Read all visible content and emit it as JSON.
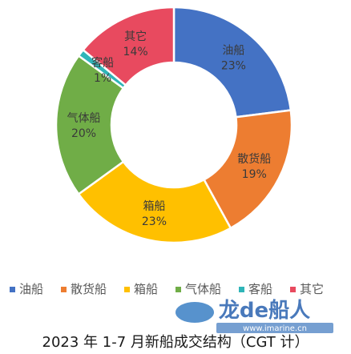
{
  "chart_data": {
    "type": "pie",
    "title": "2023 年 1-7 月新船成交结构（CGT 计）",
    "slices": [
      {
        "label": "油船",
        "value": 23,
        "value_label": "23%",
        "color": "#4472C4"
      },
      {
        "label": "散货船",
        "value": 19,
        "value_label": "19%",
        "color": "#ED7D31"
      },
      {
        "label": "箱船",
        "value": 23,
        "value_label": "23%",
        "color": "#FFC000"
      },
      {
        "label": "气体船",
        "value": 20,
        "value_label": "20%",
        "color": "#70AD47"
      },
      {
        "label": "客船",
        "value": 1,
        "value_label": "1%",
        "color": "#2FB5B8"
      },
      {
        "label": "其它",
        "value": 14,
        "value_label": "14%",
        "color": "#E84A5F"
      }
    ],
    "legend_position": "bottom"
  },
  "watermark": {
    "brand": "龙de船人",
    "url": "www.imarine.cn"
  }
}
